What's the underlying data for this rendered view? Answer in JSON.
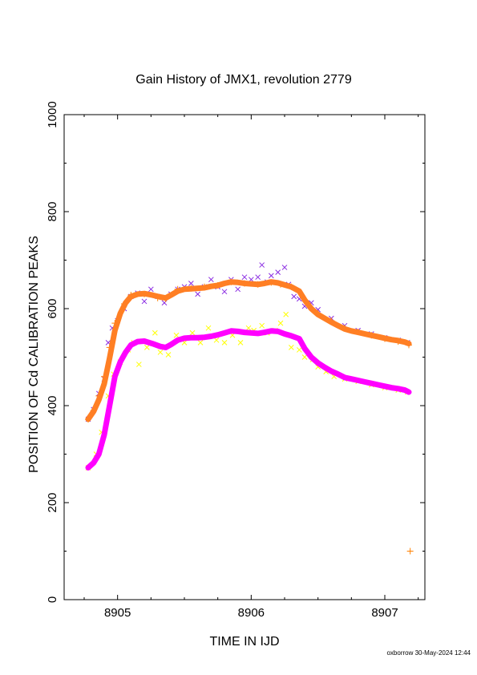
{
  "chart_data": {
    "type": "scatter",
    "title": "Gain History of JMX1, revolution 2779",
    "xlabel": "TIME IN IJD",
    "ylabel": "POSITION OF Cd CALIBRATION PEAKS",
    "xlim": [
      8904.6,
      8907.3
    ],
    "ylim": [
      0,
      1000
    ],
    "x_ticks": [
      8905,
      8906,
      8907
    ],
    "x_tick_labels": [
      "8905",
      "8906",
      "8907"
    ],
    "y_ticks": [
      0,
      200,
      400,
      600,
      800,
      1000
    ],
    "y_tick_labels": [
      "0",
      "200",
      "400",
      "600",
      "800",
      "1000"
    ],
    "grid": false,
    "legend": "none",
    "footer": "oxborrow 30-May-2024 12:44",
    "series": [
      {
        "marker": "x",
        "color": "#8a2be2",
        "points": [
          [
            8904.78,
            372
          ],
          [
            8904.82,
            392
          ],
          [
            8904.86,
            425
          ],
          [
            8904.9,
            455
          ],
          [
            8904.93,
            530
          ],
          [
            8904.96,
            560
          ],
          [
            8905.0,
            575
          ],
          [
            8905.05,
            600
          ],
          [
            8905.1,
            625
          ],
          [
            8905.15,
            632
          ],
          [
            8905.2,
            615
          ],
          [
            8905.25,
            640
          ],
          [
            8905.3,
            625
          ],
          [
            8905.35,
            612
          ],
          [
            8905.4,
            630
          ],
          [
            8905.45,
            640
          ],
          [
            8905.5,
            645
          ],
          [
            8905.55,
            652
          ],
          [
            8905.6,
            630
          ],
          [
            8905.65,
            645
          ],
          [
            8905.7,
            660
          ],
          [
            8905.75,
            645
          ],
          [
            8905.8,
            635
          ],
          [
            8905.85,
            660
          ],
          [
            8905.9,
            640
          ],
          [
            8905.95,
            665
          ],
          [
            8906.0,
            660
          ],
          [
            8906.05,
            665
          ],
          [
            8906.08,
            690
          ],
          [
            8906.12,
            655
          ],
          [
            8906.15,
            668
          ],
          [
            8906.2,
            675
          ],
          [
            8906.25,
            685
          ],
          [
            8906.28,
            650
          ],
          [
            8906.32,
            625
          ],
          [
            8906.36,
            620
          ],
          [
            8906.4,
            605
          ],
          [
            8906.45,
            612
          ],
          [
            8906.5,
            598
          ],
          [
            8906.6,
            580
          ],
          [
            8906.7,
            565
          ],
          [
            8906.8,
            555
          ],
          [
            8906.9,
            548
          ],
          [
            8907.0,
            540
          ],
          [
            8907.1,
            535
          ],
          [
            8907.17,
            530
          ]
        ]
      },
      {
        "marker": "x",
        "color": "#ffff00",
        "points": [
          [
            8904.78,
            272
          ],
          [
            8904.84,
            300
          ],
          [
            8904.88,
            345
          ],
          [
            8904.93,
            420
          ],
          [
            8904.97,
            465
          ],
          [
            8905.02,
            490
          ],
          [
            8905.08,
            515
          ],
          [
            8905.12,
            530
          ],
          [
            8905.16,
            485
          ],
          [
            8905.22,
            520
          ],
          [
            8905.28,
            550
          ],
          [
            8905.32,
            510
          ],
          [
            8905.38,
            505
          ],
          [
            8905.44,
            545
          ],
          [
            8905.5,
            530
          ],
          [
            8905.56,
            550
          ],
          [
            8905.62,
            530
          ],
          [
            8905.68,
            560
          ],
          [
            8905.74,
            535
          ],
          [
            8905.8,
            530
          ],
          [
            8905.86,
            545
          ],
          [
            8905.92,
            530
          ],
          [
            8905.98,
            560
          ],
          [
            8906.02,
            555
          ],
          [
            8906.08,
            565
          ],
          [
            8906.12,
            550
          ],
          [
            8906.18,
            555
          ],
          [
            8906.22,
            570
          ],
          [
            8906.26,
            588
          ],
          [
            8906.3,
            520
          ],
          [
            8906.36,
            515
          ],
          [
            8906.4,
            500
          ],
          [
            8906.46,
            495
          ],
          [
            8906.5,
            480
          ],
          [
            8906.56,
            470
          ],
          [
            8906.62,
            460
          ],
          [
            8906.7,
            455
          ],
          [
            8906.8,
            450
          ],
          [
            8906.9,
            443
          ],
          [
            8907.0,
            437
          ],
          [
            8907.1,
            432
          ],
          [
            8907.17,
            428
          ]
        ]
      },
      {
        "marker": "+",
        "color": "#ff8000",
        "points": [
          [
            8904.78,
            372
          ],
          [
            8904.82,
            390
          ],
          [
            8904.86,
            420
          ],
          [
            8904.9,
            460
          ],
          [
            8904.94,
            520
          ],
          [
            8904.98,
            570
          ],
          [
            8905.05,
            610
          ],
          [
            8905.1,
            628
          ],
          [
            8905.2,
            630
          ],
          [
            8905.3,
            622
          ],
          [
            8905.36,
            620
          ],
          [
            8905.45,
            640
          ],
          [
            8905.55,
            642
          ],
          [
            8905.65,
            645
          ],
          [
            8905.75,
            648
          ],
          [
            8905.85,
            655
          ],
          [
            8905.95,
            652
          ],
          [
            8906.05,
            650
          ],
          [
            8906.15,
            654
          ],
          [
            8906.22,
            650
          ],
          [
            8906.3,
            645
          ],
          [
            8906.36,
            635
          ],
          [
            8906.42,
            610
          ],
          [
            8906.5,
            590
          ],
          [
            8906.6,
            575
          ],
          [
            8906.7,
            560
          ],
          [
            8906.8,
            552
          ],
          [
            8906.9,
            545
          ],
          [
            8907.0,
            538
          ],
          [
            8907.1,
            532
          ],
          [
            8907.18,
            525
          ],
          [
            8907.19,
            100
          ]
        ]
      }
    ],
    "fit_curves": [
      {
        "color": "#ff7f24",
        "values": [
          [
            8904.78,
            372
          ],
          [
            8904.82,
            388
          ],
          [
            8904.86,
            412
          ],
          [
            8904.9,
            445
          ],
          [
            8904.94,
            498
          ],
          [
            8904.98,
            555
          ],
          [
            8905.02,
            590
          ],
          [
            8905.06,
            612
          ],
          [
            8905.1,
            625
          ],
          [
            8905.15,
            630
          ],
          [
            8905.2,
            631
          ],
          [
            8905.26,
            628
          ],
          [
            8905.32,
            624
          ],
          [
            8905.36,
            622
          ],
          [
            8905.4,
            628
          ],
          [
            8905.45,
            636
          ],
          [
            8905.5,
            640
          ],
          [
            8905.55,
            641
          ],
          [
            8905.6,
            642
          ],
          [
            8905.65,
            643
          ],
          [
            8905.7,
            646
          ],
          [
            8905.75,
            648
          ],
          [
            8905.8,
            652
          ],
          [
            8905.85,
            655
          ],
          [
            8905.9,
            654
          ],
          [
            8905.95,
            652
          ],
          [
            8906.0,
            651
          ],
          [
            8906.05,
            650
          ],
          [
            8906.1,
            652
          ],
          [
            8906.15,
            655
          ],
          [
            8906.2,
            653
          ],
          [
            8906.25,
            649
          ],
          [
            8906.3,
            645
          ],
          [
            8906.36,
            636
          ],
          [
            8906.4,
            618
          ],
          [
            8906.45,
            600
          ],
          [
            8906.5,
            588
          ],
          [
            8906.55,
            580
          ],
          [
            8906.6,
            572
          ],
          [
            8906.65,
            565
          ],
          [
            8906.7,
            558
          ],
          [
            8906.75,
            554
          ],
          [
            8906.8,
            551
          ],
          [
            8906.85,
            548
          ],
          [
            8906.9,
            545
          ],
          [
            8906.95,
            542
          ],
          [
            8907.0,
            539
          ],
          [
            8907.05,
            536
          ],
          [
            8907.1,
            534
          ],
          [
            8907.15,
            531
          ],
          [
            8907.18,
            528
          ]
        ]
      },
      {
        "color": "#ff00ff",
        "values": [
          [
            8904.78,
            272
          ],
          [
            8904.82,
            282
          ],
          [
            8904.86,
            300
          ],
          [
            8904.9,
            340
          ],
          [
            8904.94,
            400
          ],
          [
            8904.98,
            460
          ],
          [
            8905.02,
            490
          ],
          [
            8905.06,
            510
          ],
          [
            8905.1,
            525
          ],
          [
            8905.15,
            532
          ],
          [
            8905.2,
            533
          ],
          [
            8905.26,
            528
          ],
          [
            8905.32,
            522
          ],
          [
            8905.36,
            520
          ],
          [
            8905.4,
            526
          ],
          [
            8905.45,
            535
          ],
          [
            8905.5,
            539
          ],
          [
            8905.55,
            540
          ],
          [
            8905.6,
            540
          ],
          [
            8905.65,
            541
          ],
          [
            8905.7,
            543
          ],
          [
            8905.75,
            546
          ],
          [
            8905.8,
            550
          ],
          [
            8905.85,
            554
          ],
          [
            8905.9,
            553
          ],
          [
            8905.95,
            551
          ],
          [
            8906.0,
            550
          ],
          [
            8906.05,
            549
          ],
          [
            8906.1,
            551
          ],
          [
            8906.15,
            554
          ],
          [
            8906.2,
            553
          ],
          [
            8906.25,
            548
          ],
          [
            8906.3,
            544
          ],
          [
            8906.36,
            538
          ],
          [
            8906.4,
            518
          ],
          [
            8906.45,
            500
          ],
          [
            8906.5,
            488
          ],
          [
            8906.55,
            479
          ],
          [
            8906.6,
            471
          ],
          [
            8906.65,
            465
          ],
          [
            8906.7,
            458
          ],
          [
            8906.75,
            455
          ],
          [
            8906.8,
            452
          ],
          [
            8906.85,
            449
          ],
          [
            8906.9,
            446
          ],
          [
            8906.95,
            443
          ],
          [
            8907.0,
            440
          ],
          [
            8907.05,
            437
          ],
          [
            8907.1,
            435
          ],
          [
            8907.15,
            432
          ],
          [
            8907.18,
            428
          ]
        ]
      }
    ]
  }
}
